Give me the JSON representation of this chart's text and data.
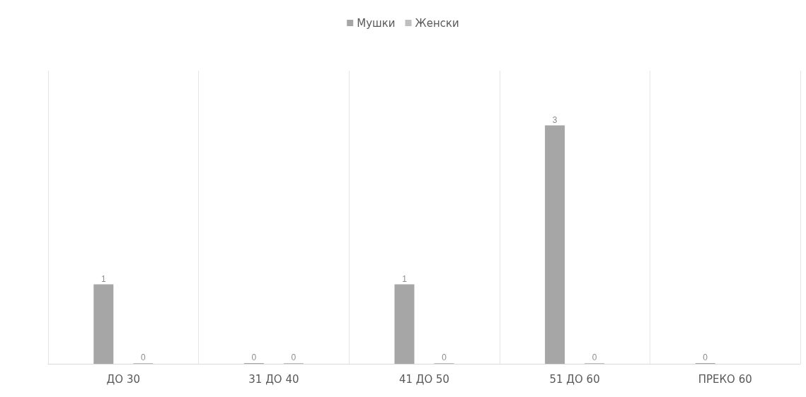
{
  "chart_data": {
    "type": "bar",
    "categories": [
      "ДО 30",
      "31 ДО 40",
      "41 ДО 50",
      "51 ДО 60",
      "ПРЕКО 60"
    ],
    "series": [
      {
        "name": "Мушки",
        "color": "#a6a6a6",
        "values": [
          1,
          0,
          1,
          3,
          0
        ]
      },
      {
        "name": "Женски",
        "color": "#bfbfbf",
        "values": [
          0,
          0,
          0,
          0,
          null
        ]
      }
    ],
    "data_labels": true,
    "grid": "x",
    "legend": "top"
  }
}
